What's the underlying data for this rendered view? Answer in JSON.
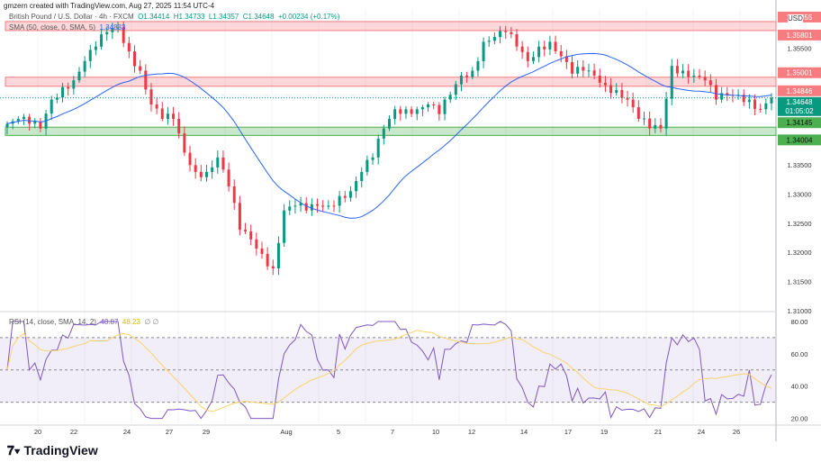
{
  "attribution": "gmzern created with TradingView.com, Aug 27, 2025 11:54 UTC-4",
  "symbol": "British Pound / U.S. Dollar · 4h · FXCM",
  "ohlc": {
    "o": "O1.34414",
    "h": "H1.34733",
    "l": "L1.34357",
    "c": "C1.34648",
    "chg": "+0.00234 (+0.17%)"
  },
  "sma_legend": {
    "label": "SMA (50, close, 0, SMA, 5)",
    "value": "1.34833"
  },
  "rsi_legend": {
    "label": "RSI (14, close, SMA, 14, 2)",
    "rsi": "48.87",
    "sma": "48.23",
    "extra": "∅ ∅"
  },
  "currency": "USD",
  "logo": "TradingView",
  "colors": {
    "up": "#089981",
    "down": "#f23645",
    "sma": "#2962ff",
    "rsi": "#7e57c2",
    "rsi_ma": "#f7d36a",
    "resistance": "#f77c80",
    "support": "#4caf50"
  },
  "chart_data": {
    "type": "candlestick",
    "price_axis": {
      "ticks": [
        "1.35500",
        "1.33500",
        "1.33000",
        "1.32500",
        "1.32000",
        "1.31500",
        "1.31000"
      ],
      "range": [
        1.31,
        1.3617
      ]
    },
    "x_ticks": [
      "20",
      "22",
      "24",
      "27",
      "29",
      "Aug",
      "5",
      "7",
      "10",
      "12",
      "14",
      "17",
      "19",
      "21",
      "24",
      "26"
    ],
    "closes": [
      1.34204,
      1.34287,
      1.34204,
      1.34122,
      1.34617,
      1.34832,
      1.34947,
      1.35278,
      1.35526,
      1.35773,
      1.35856,
      1.35443,
      1.35113,
      1.34534,
      1.34287,
      1.34287,
      1.33709,
      1.33378,
      1.33378,
      1.33626,
      1.3313,
      1.32387,
      1.32222,
      1.31974,
      1.31726,
      1.32717,
      1.328,
      1.32717,
      1.328,
      1.328,
      1.32965,
      1.33048,
      1.33378,
      1.33626,
      1.34122,
      1.34452,
      1.34452,
      1.34452,
      1.34534,
      1.34369,
      1.347,
      1.3503,
      1.35113,
      1.35608,
      1.35691,
      1.35773,
      1.35526,
      1.35278,
      1.35526,
      1.35608,
      1.3536,
      1.35063,
      1.35113,
      1.3503,
      1.34865,
      1.34782,
      1.34617,
      1.34287,
      1.34122,
      1.34122,
      1.35195,
      1.35113,
      1.3503,
      1.34947,
      1.34617,
      1.347,
      1.347,
      1.34617,
      1.34452,
      1.34648
    ],
    "zones": [
      {
        "kind": "resistance",
        "top": "1.35955",
        "bottom": "1.35801"
      },
      {
        "kind": "resistance",
        "top": "1.35001",
        "bottom": "1.34846"
      },
      {
        "kind": "support",
        "top": "1.34145",
        "bottom": "1.34004"
      }
    ],
    "last": {
      "price": "1.34648",
      "countdown": "01:05:02"
    },
    "rsi": {
      "ticks": [
        "80.00",
        "60.00",
        "40.00",
        "20.00"
      ],
      "bands": [
        70,
        30
      ],
      "range": [
        17,
        85
      ]
    }
  }
}
